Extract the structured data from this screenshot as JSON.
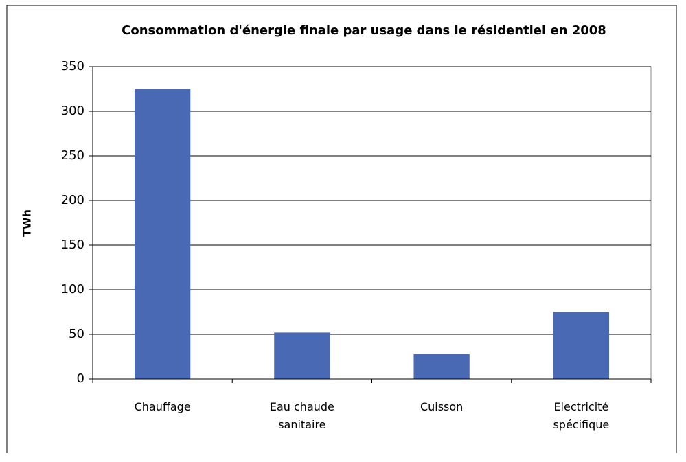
{
  "chart_data": {
    "type": "bar",
    "title": "Consommation d'énergie finale par usage dans le résidentiel en 2008",
    "y_label": "TWh",
    "categories": [
      "Chauffage",
      "Eau chaude sanitaire",
      "Cuisson",
      "Electricité spécifique"
    ],
    "values": [
      325,
      52,
      28,
      75
    ],
    "color": "#4a69b4",
    "ylim": [
      0,
      350
    ],
    "yticks": [
      0,
      50,
      100,
      150,
      200,
      250,
      300,
      350
    ],
    "grid": true
  }
}
